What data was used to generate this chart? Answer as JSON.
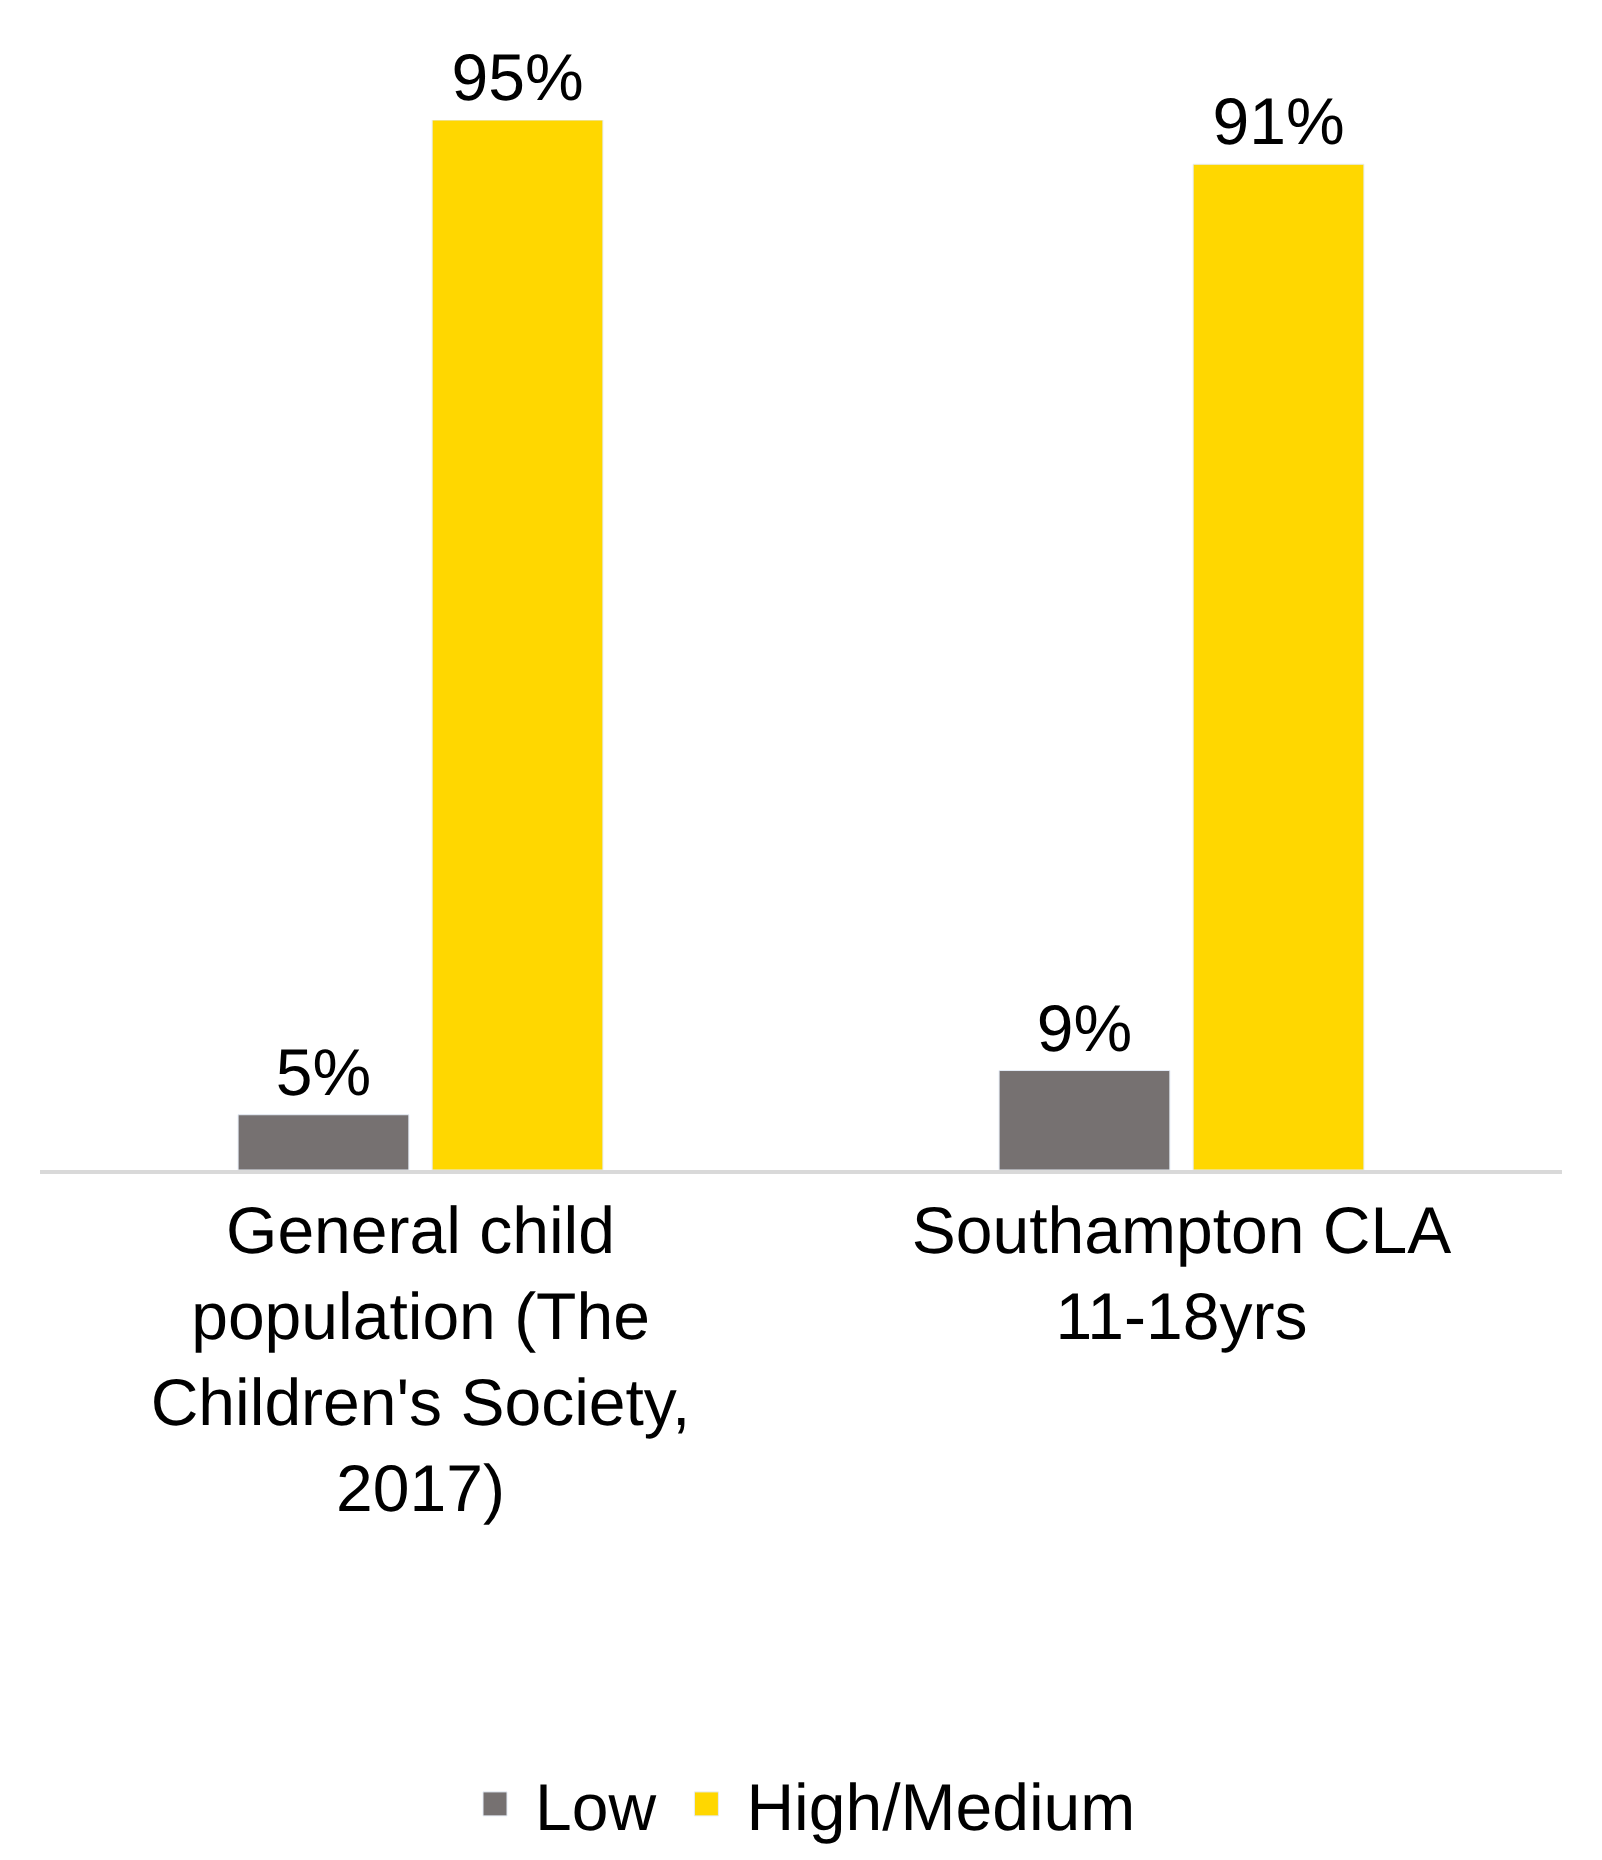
{
  "chart_data": {
    "type": "bar",
    "categories": [
      "General child population (The Children's Society, 2017)",
      "Southampton CLA 11-18yrs"
    ],
    "series": [
      {
        "name": "Low",
        "color": "#767171",
        "values": [
          5,
          9
        ],
        "value_labels": [
          "5%",
          "9%"
        ]
      },
      {
        "name": "High/Medium",
        "color": "#ffd700",
        "values": [
          95,
          91
        ],
        "value_labels": [
          "95%",
          "91%"
        ]
      }
    ],
    "legend": "bottom"
  }
}
